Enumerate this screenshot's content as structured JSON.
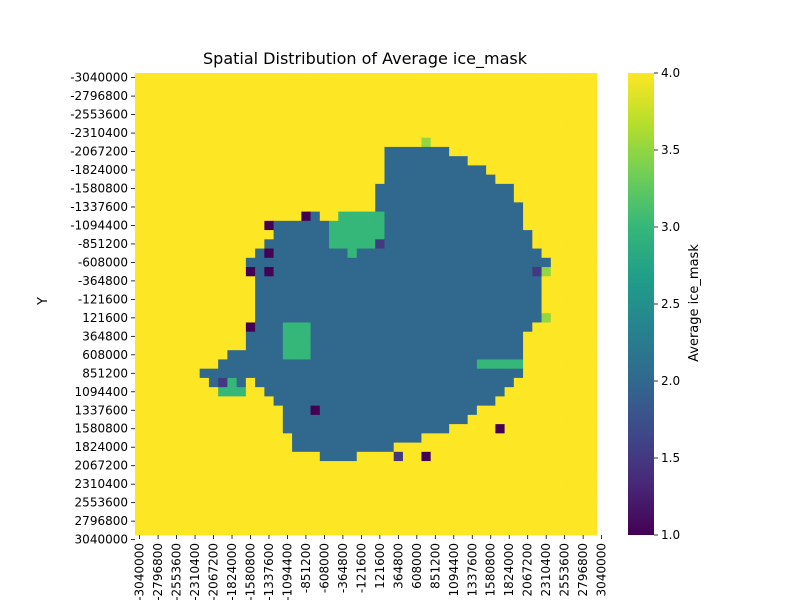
{
  "chart_data": {
    "type": "heatmap",
    "title": "Spatial Distribution of Average ice_mask",
    "xlabel": "",
    "ylabel": "Y",
    "colorbar_label": "Average ice_mask",
    "value_range": [
      1.0,
      4.0
    ],
    "colorbar_ticks": [
      "1.0",
      "1.5",
      "2.0",
      "2.5",
      "3.0",
      "3.5",
      "4.0"
    ],
    "colormap": [
      "#440154",
      "#482878",
      "#3e4989",
      "#31688e",
      "#26828e",
      "#1f9e89",
      "#35b779",
      "#6ece58",
      "#b5de2b",
      "#fde725"
    ],
    "y_tick_labels": [
      "-3040000",
      "-2796800",
      "-2553600",
      "-2310400",
      "-2067200",
      "-1824000",
      "-1580800",
      "-1337600",
      "-1094400",
      "-851200",
      "-608000",
      "-364800",
      "-121600",
      "121600",
      "364800",
      "608000",
      "851200",
      "1094400",
      "1337600",
      "1580800",
      "1824000",
      "2067200",
      "2310400",
      "2553600",
      "2796800",
      "3040000"
    ],
    "x_tick_labels": [
      "-3040000",
      "-2796800",
      "-2553600",
      "-2310400",
      "-2067200",
      "-1824000",
      "-1580800",
      "-1337600",
      "-1094400",
      "-851200",
      "-608000",
      "-364800",
      "-121600",
      "121600",
      "364800",
      "608000",
      "851200",
      "1094400",
      "1337600",
      "1580800",
      "1824000",
      "2067200",
      "2310400",
      "2553600",
      "2796800",
      "3040000"
    ],
    "grid_axis_range": [
      -3040000,
      3040000
    ],
    "outer_disk_radius": 3000000,
    "regions": {
      "outside_disk_value": null,
      "ocean_value": 4.0,
      "grounded_ice_value": 2.0,
      "floating_ice_value": 3.0,
      "grounded_ice_polygon": [
        [
          -1200000,
          -1100000
        ],
        [
          -700000,
          -1200000
        ],
        [
          -300000,
          -1050000
        ],
        [
          100000,
          -1300000
        ],
        [
          300000,
          -2080000
        ],
        [
          1000000,
          -2080000
        ],
        [
          1500000,
          -1850000
        ],
        [
          1900000,
          -1600000
        ],
        [
          2100000,
          -1200000
        ],
        [
          2300000,
          -700000
        ],
        [
          2500000,
          -500000
        ],
        [
          2300000,
          -300000
        ],
        [
          2300000,
          300000
        ],
        [
          2100000,
          500000
        ],
        [
          2100000,
          1000000
        ],
        [
          1700000,
          1300000
        ],
        [
          1300000,
          1600000
        ],
        [
          700000,
          1800000
        ],
        [
          200000,
          2000000
        ],
        [
          -400000,
          2100000
        ],
        [
          -900000,
          2000000
        ],
        [
          -1100000,
          1700000
        ],
        [
          -1200000,
          1300000
        ],
        [
          -1500000,
          1000000
        ],
        [
          -2000000,
          1200000
        ],
        [
          -2200000,
          900000
        ],
        [
          -1700000,
          600000
        ],
        [
          -1500000,
          300000
        ],
        [
          -1500000,
          -300000
        ],
        [
          -1600000,
          -600000
        ],
        [
          -1300000,
          -900000
        ]
      ],
      "floating_ice_polygons": [
        [
          [
            -400000,
            -1200000
          ],
          [
            200000,
            -1250000
          ],
          [
            300000,
            -800000
          ],
          [
            -200000,
            -650000
          ],
          [
            -500000,
            -800000
          ]
        ],
        [
          [
            -1100000,
            300000
          ],
          [
            -800000,
            300000
          ],
          [
            -700000,
            700000
          ],
          [
            -1100000,
            800000
          ]
        ],
        [
          [
            1500000,
            800000
          ],
          [
            2100000,
            800000
          ],
          [
            2100000,
            900000
          ],
          [
            1500000,
            900000
          ]
        ],
        [
          [
            -1900000,
            950000
          ],
          [
            -1700000,
            950000
          ],
          [
            -1650000,
            1250000
          ],
          [
            -1950000,
            1250000
          ]
        ]
      ],
      "outliers": [
        {
          "x": -1250000,
          "y": -1050000,
          "value": 1.0
        },
        {
          "x": -780000,
          "y": -1130000,
          "value": 1.0
        },
        {
          "x": -1330000,
          "y": -700000,
          "value": 1.0
        },
        {
          "x": -1330000,
          "y": -380000,
          "value": 1.0
        },
        {
          "x": -1600000,
          "y": -380000,
          "value": 1.0
        },
        {
          "x": -1520000,
          "y": 330000,
          "value": 1.0
        },
        {
          "x": -700000,
          "y": 1400000,
          "value": 1.0
        },
        {
          "x": 750000,
          "y": 2100000,
          "value": 1.0
        },
        {
          "x": 1800000,
          "y": 1620000,
          "value": 1.0
        },
        {
          "x": 2280000,
          "y": -400000,
          "value": 1.5
        },
        {
          "x": 150000,
          "y": -850000,
          "value": 1.5
        },
        {
          "x": -1950000,
          "y": 1080000,
          "value": 1.5
        },
        {
          "x": 450000,
          "y": 2100000,
          "value": 1.5
        },
        {
          "x": 750000,
          "y": -2130000,
          "value": 3.5
        },
        {
          "x": 2400000,
          "y": 150000,
          "value": 3.5
        },
        {
          "x": 2450000,
          "y": -420000,
          "value": 3.5
        }
      ]
    }
  }
}
